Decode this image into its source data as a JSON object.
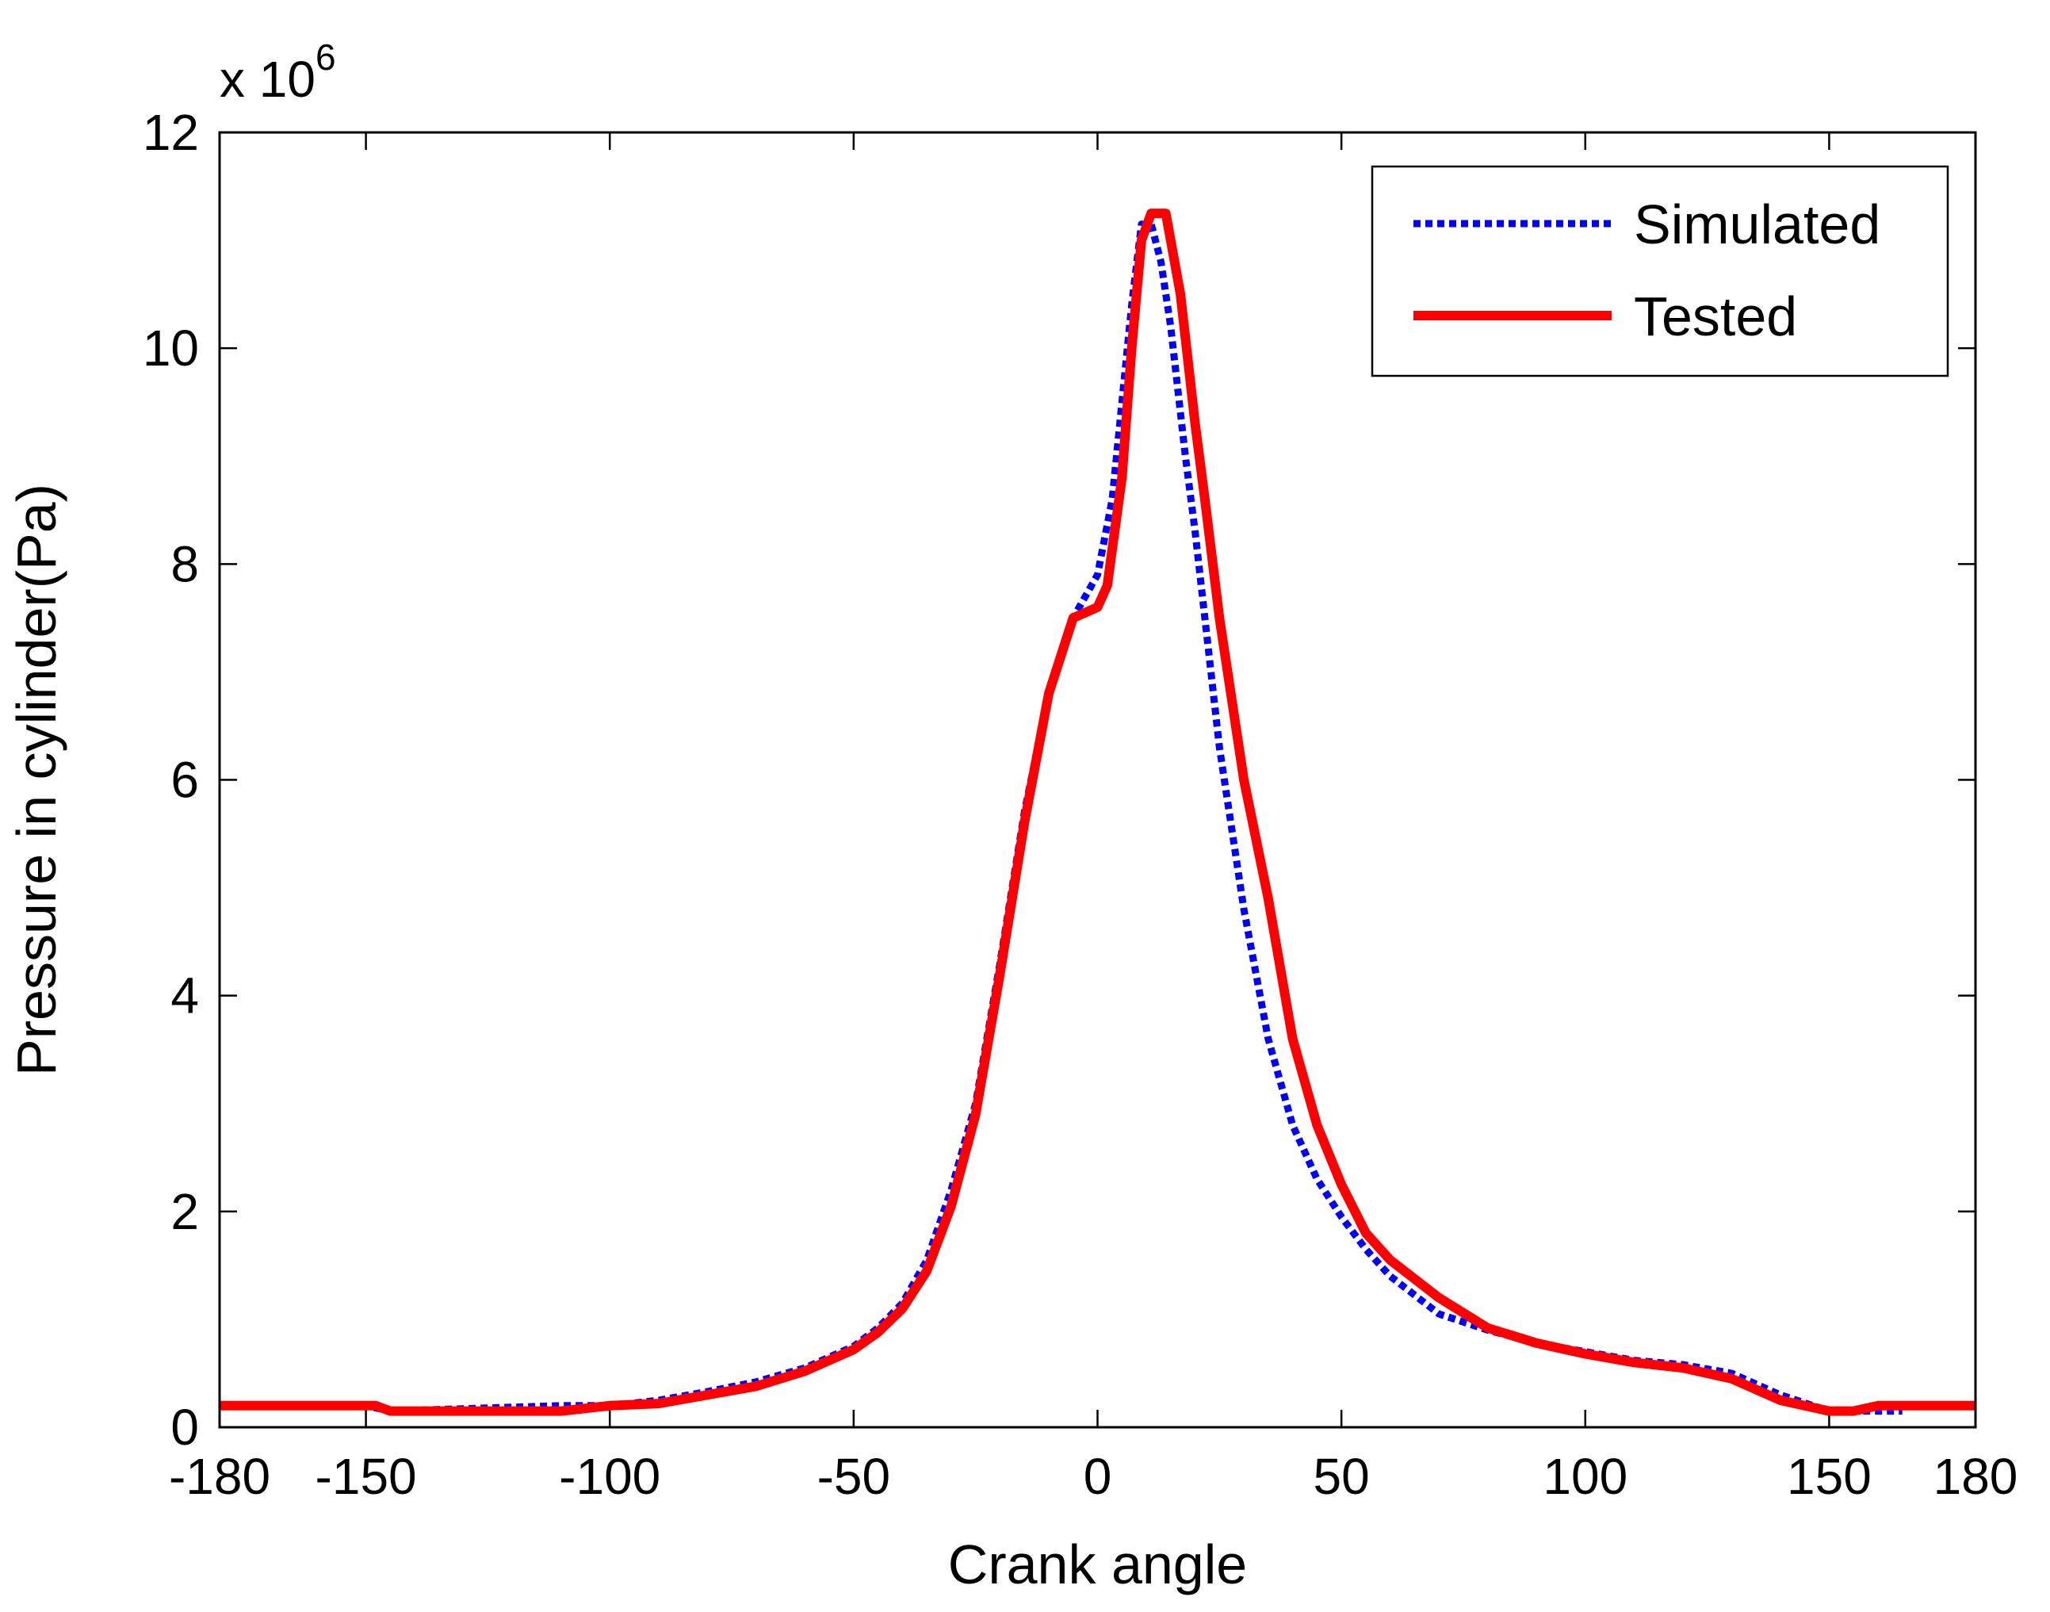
{
  "chart_data": {
    "type": "line",
    "title": "",
    "xlabel": "Crank angle",
    "ylabel": "Pressure in cylinder(Pa)",
    "y_exponent_label": "x 10",
    "y_exponent_power": "6",
    "xlim": [
      -180,
      180
    ],
    "ylim": [
      0,
      12
    ],
    "x_ticks": [
      -180,
      -150,
      -100,
      -50,
      0,
      50,
      100,
      150,
      180
    ],
    "x_tick_labels": [
      "-180",
      "-150",
      "-100",
      "-50",
      "0",
      "50",
      "100",
      "150",
      "180"
    ],
    "y_ticks": [
      0,
      2,
      4,
      6,
      8,
      10,
      12
    ],
    "y_tick_labels": [
      "0",
      "2",
      "4",
      "6",
      "8",
      "10",
      "12"
    ],
    "grid": false,
    "legend_position": "top-right",
    "series": [
      {
        "name": "Simulated",
        "color": "#0000ff",
        "style": "dotted",
        "x": [
          -180,
          -150,
          -145,
          -110,
          -100,
          -90,
          -80,
          -70,
          -60,
          -50,
          -45,
          -40,
          -35,
          -30,
          -25,
          -20,
          -15,
          -10,
          -5,
          0,
          3,
          5,
          7,
          9,
          11,
          13,
          15,
          18,
          20,
          25,
          30,
          35,
          40,
          45,
          50,
          55,
          60,
          70,
          80,
          90,
          100,
          110,
          120,
          130,
          140,
          150,
          160,
          165
        ],
        "y": [
          0.2,
          0.2,
          0.15,
          0.2,
          0.2,
          0.25,
          0.33,
          0.42,
          0.55,
          0.75,
          0.92,
          1.15,
          1.55,
          2.2,
          3.0,
          4.3,
          5.7,
          6.8,
          7.5,
          7.9,
          8.6,
          9.5,
          10.4,
          11.15,
          11.15,
          10.8,
          10.2,
          9.0,
          8.3,
          6.3,
          4.8,
          3.6,
          2.8,
          2.3,
          1.95,
          1.65,
          1.4,
          1.05,
          0.9,
          0.78,
          0.7,
          0.62,
          0.58,
          0.5,
          0.3,
          0.15,
          0.15,
          0.15
        ]
      },
      {
        "name": "Tested",
        "color": "#ff0000",
        "style": "solid",
        "x": [
          -180,
          -148,
          -145,
          -110,
          -100,
          -90,
          -80,
          -70,
          -60,
          -50,
          -45,
          -40,
          -35,
          -30,
          -25,
          -20,
          -15,
          -10,
          -5,
          0,
          2,
          5,
          7,
          9,
          11,
          12,
          14,
          17,
          20,
          22,
          25,
          30,
          35,
          40,
          45,
          50,
          55,
          60,
          70,
          80,
          90,
          100,
          110,
          120,
          130,
          140,
          150,
          155,
          160,
          170,
          180
        ],
        "y": [
          0.2,
          0.2,
          0.15,
          0.15,
          0.2,
          0.22,
          0.3,
          0.38,
          0.52,
          0.72,
          0.88,
          1.1,
          1.45,
          2.05,
          2.9,
          4.2,
          5.6,
          6.8,
          7.5,
          7.6,
          7.8,
          8.8,
          10.0,
          11.0,
          11.25,
          11.25,
          11.25,
          10.5,
          9.3,
          8.6,
          7.5,
          6.0,
          4.9,
          3.6,
          2.8,
          2.25,
          1.8,
          1.55,
          1.2,
          0.92,
          0.78,
          0.68,
          0.6,
          0.55,
          0.45,
          0.25,
          0.15,
          0.15,
          0.2,
          0.2,
          0.2
        ]
      }
    ]
  }
}
